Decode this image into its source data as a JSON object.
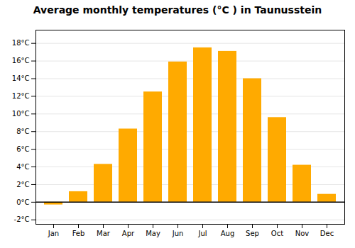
{
  "chart_data": {
    "type": "bar",
    "title": "Average monthly temperatures (°C ) in Taunusstein",
    "categories": [
      "Jan",
      "Feb",
      "Mar",
      "Apr",
      "May",
      "Jun",
      "Jul",
      "Aug",
      "Sep",
      "Oct",
      "Nov",
      "Dec"
    ],
    "values": [
      -0.3,
      1.2,
      4.3,
      8.3,
      12.5,
      15.9,
      17.5,
      17.1,
      14.0,
      9.6,
      4.2,
      0.9
    ],
    "color": "#FFAA00",
    "ylim": [
      -2.5,
      19.5
    ],
    "yticks": [
      {
        "value": -2,
        "label": "-2°C"
      },
      {
        "value": 0,
        "label": "0°C"
      },
      {
        "value": 2,
        "label": "2°C"
      },
      {
        "value": 4,
        "label": "4°C"
      },
      {
        "value": 6,
        "label": "6°C"
      },
      {
        "value": 8,
        "label": "8°C"
      },
      {
        "value": 10,
        "label": "10°C"
      },
      {
        "value": 12,
        "label": "12°C"
      },
      {
        "value": 14,
        "label": "14°C"
      },
      {
        "value": 16,
        "label": "16°C"
      },
      {
        "value": 18,
        "label": "18°C"
      }
    ],
    "grid": true
  }
}
